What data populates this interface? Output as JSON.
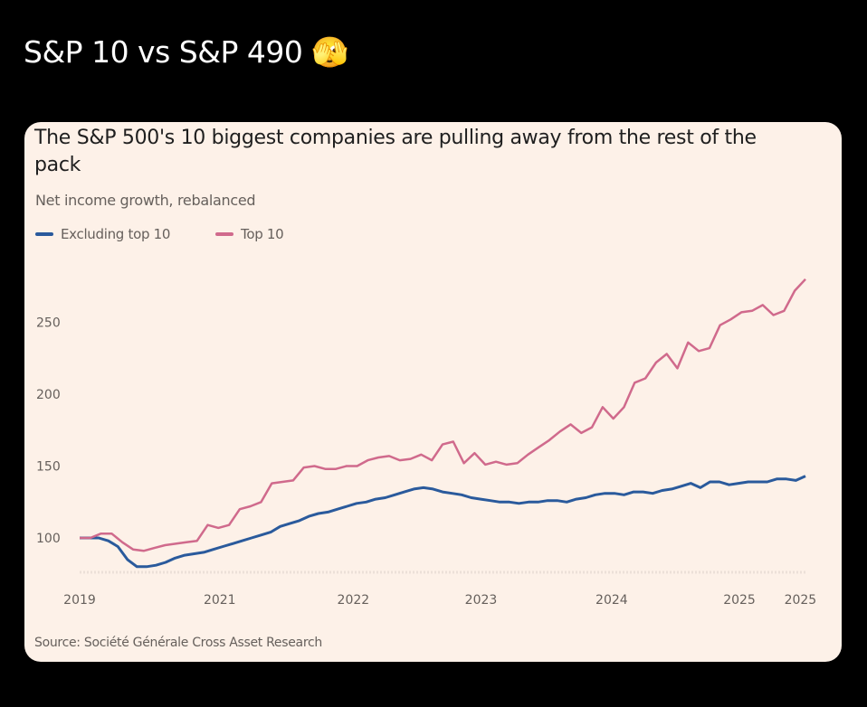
{
  "post": {
    "title": "S&P 10 vs S&P 490",
    "emoji": "🫣"
  },
  "chart_data": {
    "type": "line",
    "title": "The S&P 500's 10 biggest companies are pulling away from the rest of the pack",
    "subtitle": "Net income growth, rebalanced",
    "source": "Source: Société Générale Cross Asset Research",
    "ylim": [
      75,
      290
    ],
    "yticks": [
      "100",
      "150",
      "200",
      "250"
    ],
    "xticks": [
      {
        "label": "2019",
        "at": 0
      },
      {
        "label": "2021",
        "at": 0.193
      },
      {
        "label": "2022",
        "at": 0.377
      },
      {
        "label": "2023",
        "at": 0.553
      },
      {
        "label": "2024",
        "at": 0.733
      },
      {
        "label": "2025",
        "at": 0.909
      },
      {
        "label": "2025",
        "at": 0.993
      }
    ],
    "legend_position": "top-left",
    "series": [
      {
        "name": "Excluding top 10",
        "color": "#2a5a9c",
        "values": [
          100,
          100,
          100,
          98,
          94,
          85,
          80,
          80,
          81,
          83,
          86,
          88,
          89,
          90,
          92,
          94,
          96,
          98,
          100,
          102,
          104,
          108,
          110,
          112,
          115,
          117,
          118,
          120,
          122,
          124,
          125,
          127,
          128,
          130,
          132,
          134,
          135,
          134,
          132,
          131,
          130,
          128,
          127,
          126,
          125,
          125,
          124,
          125,
          125,
          126,
          126,
          125,
          127,
          128,
          130,
          131,
          131,
          130,
          132,
          132,
          131,
          133,
          134,
          136,
          138,
          135,
          139,
          139,
          137,
          138,
          139,
          139,
          139,
          141,
          141,
          140,
          143
        ]
      },
      {
        "name": "Top 10",
        "color": "#d06a8c",
        "values": [
          100,
          100,
          103,
          103,
          97,
          92,
          91,
          93,
          95,
          96,
          97,
          98,
          109,
          107,
          109,
          120,
          122,
          125,
          138,
          139,
          140,
          149,
          150,
          148,
          148,
          150,
          150,
          154,
          156,
          157,
          154,
          155,
          158,
          154,
          165,
          167,
          152,
          159,
          151,
          153,
          151,
          152,
          158,
          163,
          168,
          174,
          179,
          173,
          177,
          191,
          183,
          191,
          208,
          211,
          222,
          228,
          218,
          236,
          230,
          232,
          248,
          252,
          257,
          258,
          262,
          255,
          258,
          272,
          280
        ]
      }
    ]
  }
}
